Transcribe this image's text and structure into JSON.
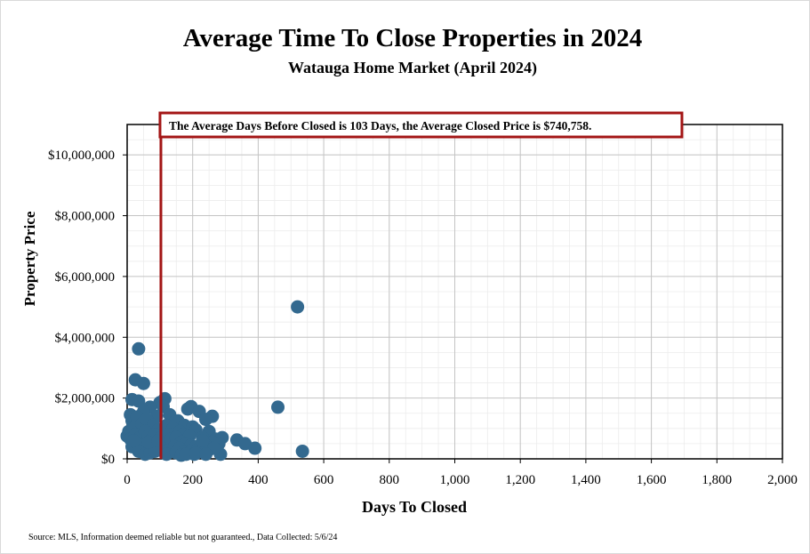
{
  "chart_data": {
    "type": "scatter",
    "title": "Average Time To Close Properties in 2024",
    "subtitle": "Watauga Home Market (April 2024)",
    "xlabel": "Days To Closed",
    "ylabel": "Property Price",
    "xlim": [
      0,
      2000
    ],
    "ylim": [
      0,
      11000000
    ],
    "x_ticks": [
      0,
      200,
      400,
      600,
      800,
      1000,
      1200,
      1400,
      1600,
      1800,
      2000
    ],
    "x_tick_labels": [
      "0",
      "200",
      "400",
      "600",
      "800",
      "1,000",
      "1,200",
      "1,400",
      "1,600",
      "1,800",
      "2,000"
    ],
    "y_ticks": [
      0,
      2000000,
      4000000,
      6000000,
      8000000,
      10000000
    ],
    "y_tick_labels": [
      "$0",
      "$2,000,000",
      "$4,000,000",
      "$6,000,000",
      "$8,000,000",
      "$10,000,000"
    ],
    "grid": true,
    "marker_color": "#33698f",
    "average_line": {
      "x": 103,
      "color": "#a31515",
      "annotation": "The Average Days Before Closed is 103 Days, the Average Closed Price is $740,758."
    },
    "points": [
      [
        520,
        5000000
      ],
      [
        35,
        3620000
      ],
      [
        25,
        2600000
      ],
      [
        50,
        2480000
      ],
      [
        15,
        1950000
      ],
      [
        35,
        1900000
      ],
      [
        115,
        1980000
      ],
      [
        100,
        1850000
      ],
      [
        110,
        1720000
      ],
      [
        195,
        1720000
      ],
      [
        185,
        1640000
      ],
      [
        70,
        1700000
      ],
      [
        460,
        1700000
      ],
      [
        220,
        1560000
      ],
      [
        260,
        1400000
      ],
      [
        240,
        1300000
      ],
      [
        155,
        1250000
      ],
      [
        15,
        1250000
      ],
      [
        50,
        1550000
      ],
      [
        10,
        1450000
      ],
      [
        30,
        1380000
      ],
      [
        90,
        1400000
      ],
      [
        130,
        1450000
      ],
      [
        145,
        1200000
      ],
      [
        175,
        1100000
      ],
      [
        200,
        1050000
      ],
      [
        210,
        950000
      ],
      [
        250,
        900000
      ],
      [
        5,
        900000
      ],
      [
        20,
        1000000
      ],
      [
        45,
        1150000
      ],
      [
        60,
        1300000
      ],
      [
        80,
        1100000
      ],
      [
        95,
        950000
      ],
      [
        120,
        1100000
      ],
      [
        140,
        1000000
      ],
      [
        160,
        900000
      ],
      [
        170,
        800000
      ],
      [
        190,
        750000
      ],
      [
        230,
        700000
      ],
      [
        270,
        650000
      ],
      [
        290,
        700000
      ],
      [
        280,
        500000
      ],
      [
        260,
        550000
      ],
      [
        335,
        620000
      ],
      [
        360,
        500000
      ],
      [
        390,
        350000
      ],
      [
        535,
        250000
      ],
      [
        285,
        150000
      ],
      [
        0,
        750000
      ],
      [
        10,
        650000
      ],
      [
        25,
        800000
      ],
      [
        40,
        700000
      ],
      [
        55,
        900000
      ],
      [
        65,
        750000
      ],
      [
        75,
        650000
      ],
      [
        85,
        800000
      ],
      [
        105,
        700000
      ],
      [
        115,
        550000
      ],
      [
        125,
        800000
      ],
      [
        135,
        650000
      ],
      [
        150,
        700000
      ],
      [
        165,
        550000
      ],
      [
        180,
        500000
      ],
      [
        195,
        450000
      ],
      [
        210,
        400000
      ],
      [
        225,
        350000
      ],
      [
        240,
        450000
      ],
      [
        250,
        300000
      ],
      [
        265,
        350000
      ],
      [
        15,
        400000
      ],
      [
        30,
        500000
      ],
      [
        45,
        450000
      ],
      [
        60,
        300000
      ],
      [
        75,
        400000
      ],
      [
        90,
        500000
      ],
      [
        100,
        350000
      ],
      [
        110,
        250000
      ],
      [
        130,
        300000
      ],
      [
        145,
        400000
      ],
      [
        160,
        350000
      ],
      [
        175,
        250000
      ],
      [
        190,
        200000
      ],
      [
        205,
        150000
      ],
      [
        215,
        300000
      ],
      [
        230,
        250000
      ],
      [
        35,
        250000
      ],
      [
        55,
        150000
      ],
      [
        70,
        200000
      ],
      [
        85,
        250000
      ],
      [
        120,
        150000
      ],
      [
        150,
        200000
      ],
      [
        165,
        120000
      ],
      [
        180,
        150000
      ],
      [
        210,
        180000
      ],
      [
        230,
        600000
      ],
      [
        240,
        150000
      ],
      [
        20,
        600000
      ],
      [
        65,
        550000
      ],
      [
        95,
        600000
      ]
    ]
  }
}
